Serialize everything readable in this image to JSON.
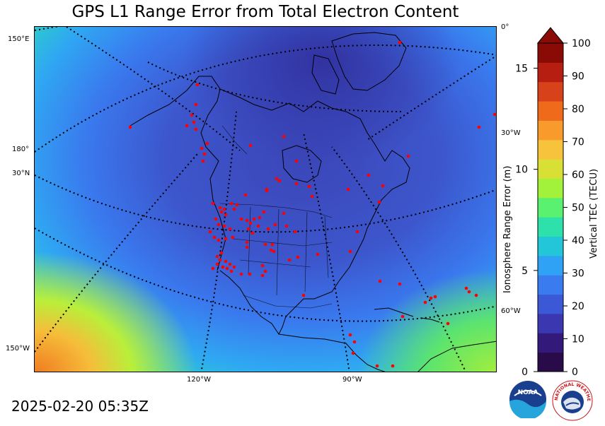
{
  "title": "GPS L1 Range Error from Total Electron Content",
  "timestamp": "2025-02-20 05:35Z",
  "map": {
    "left_labels": [
      "150°E",
      "180°",
      "30°N",
      "150°W"
    ],
    "right_labels": [
      "0°",
      "30°W",
      "60°W"
    ],
    "bottom_labels": [
      "120°W",
      "90°W"
    ],
    "station_color": "#ff0000"
  },
  "colorbar": {
    "left_axis_label": "Ionosphere Range Error (m)",
    "right_axis_label": "Vertical TEC (TECU)",
    "left_ticks": [
      "15",
      "10",
      "5",
      "0"
    ],
    "right_ticks": [
      "100",
      "90",
      "80",
      "70",
      "60",
      "50",
      "40",
      "30",
      "20",
      "10",
      "0"
    ],
    "colors": [
      "#2a0b4a",
      "#331a7a",
      "#3a37b0",
      "#3b58d6",
      "#3a7bf0",
      "#2fa2f5",
      "#22c6d8",
      "#2ee0aa",
      "#5af070",
      "#a2f23c",
      "#d8e035",
      "#f7c23c",
      "#f99a2c",
      "#ef6a1a",
      "#d8421a",
      "#b51e10",
      "#8a0a06"
    ]
  },
  "logos": {
    "noaa_text": "NOAA",
    "nws_text": "NATIONAL WEATHER SERVICE"
  }
}
